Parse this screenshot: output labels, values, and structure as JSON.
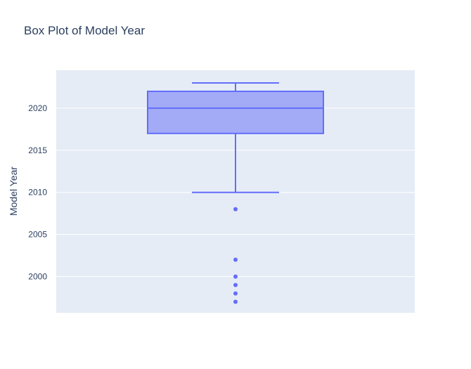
{
  "chart_data": {
    "type": "box",
    "title": "Box Plot of Model Year",
    "ylabel": "Model Year",
    "xlabel": "",
    "ylim": [
      1995.7,
      2024.5
    ],
    "yticks": [
      2000,
      2005,
      2010,
      2015,
      2020
    ],
    "grid": true,
    "legend": "none",
    "colors": {
      "plot_bg": "#e5ecf6",
      "grid": "#ffffff",
      "box_fill": "#a3abf7",
      "box_line": "#636efa",
      "outlier": "#636efa"
    },
    "box": {
      "min_whisker": 2010,
      "q1": 2017,
      "median": 2020,
      "q3": 2022,
      "max_whisker": 2023,
      "outliers": [
        2008,
        2002,
        2000,
        1999,
        1998,
        1997
      ]
    }
  }
}
